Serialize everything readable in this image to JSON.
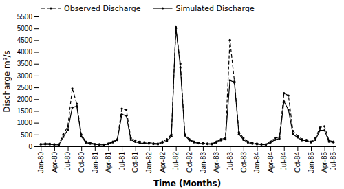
{
  "chart_data": {
    "type": "line",
    "x_label": "Time (Months)",
    "y_label": "Discharge m³/s",
    "categories": [
      "Jan-80",
      null,
      null,
      "Apr-80",
      null,
      null,
      "Jul-80",
      null,
      null,
      "Oct-80",
      null,
      null,
      "Jan-81",
      null,
      null,
      "Apr-81",
      null,
      null,
      "Jul-81",
      null,
      null,
      "Oct-81",
      null,
      null,
      "Jan-82",
      null,
      null,
      "Apr-82",
      null,
      null,
      "Jul-82",
      null,
      null,
      "Oct-82",
      null,
      null,
      "Jan-83",
      null,
      null,
      "Apr-83",
      null,
      null,
      "Jul-83",
      null,
      null,
      "Oct-83",
      null,
      null,
      "Jan-84",
      null,
      null,
      "Apr-84",
      null,
      null,
      "Jul-84",
      null,
      null,
      "Oct-84",
      null,
      null,
      "Jan-85",
      null,
      null,
      "Apr-85",
      null,
      "Jul-85"
    ],
    "series": [
      {
        "name": "Observed Discharge",
        "color": "#000000",
        "line_style": "dashed",
        "marker": "dot",
        "values": [
          100,
          120,
          110,
          90,
          80,
          500,
          850,
          2450,
          1800,
          500,
          200,
          150,
          100,
          90,
          80,
          120,
          200,
          300,
          1600,
          1550,
          350,
          250,
          200,
          180,
          160,
          130,
          120,
          200,
          300,
          500,
          5000,
          3500,
          500,
          300,
          200,
          160,
          140,
          120,
          110,
          200,
          300,
          350,
          4500,
          2750,
          600,
          350,
          200,
          150,
          120,
          100,
          90,
          200,
          350,
          400,
          2250,
          2150,
          650,
          450,
          300,
          270,
          200,
          350,
          800,
          850,
          250,
          200
        ]
      },
      {
        "name": "Simulated Discharge",
        "color": "#000000",
        "line_style": "solid",
        "marker": "dot",
        "values": [
          80,
          90,
          80,
          70,
          60,
          400,
          700,
          1650,
          1700,
          420,
          160,
          110,
          80,
          70,
          60,
          100,
          170,
          270,
          1350,
          1300,
          280,
          190,
          140,
          130,
          120,
          100,
          90,
          160,
          220,
          430,
          5050,
          3350,
          460,
          260,
          170,
          130,
          110,
          100,
          90,
          160,
          260,
          300,
          2800,
          2700,
          520,
          280,
          160,
          110,
          90,
          75,
          65,
          160,
          280,
          330,
          1900,
          1550,
          520,
          380,
          260,
          240,
          170,
          280,
          680,
          680,
          200,
          170
        ]
      }
    ],
    "ylim": [
      0,
      5500
    ],
    "yticks": [
      0,
      500,
      1000,
      1500,
      2000,
      2500,
      3000,
      3500,
      4000,
      4500,
      5000,
      5500
    ],
    "legend": "upper left",
    "grid": false
  }
}
